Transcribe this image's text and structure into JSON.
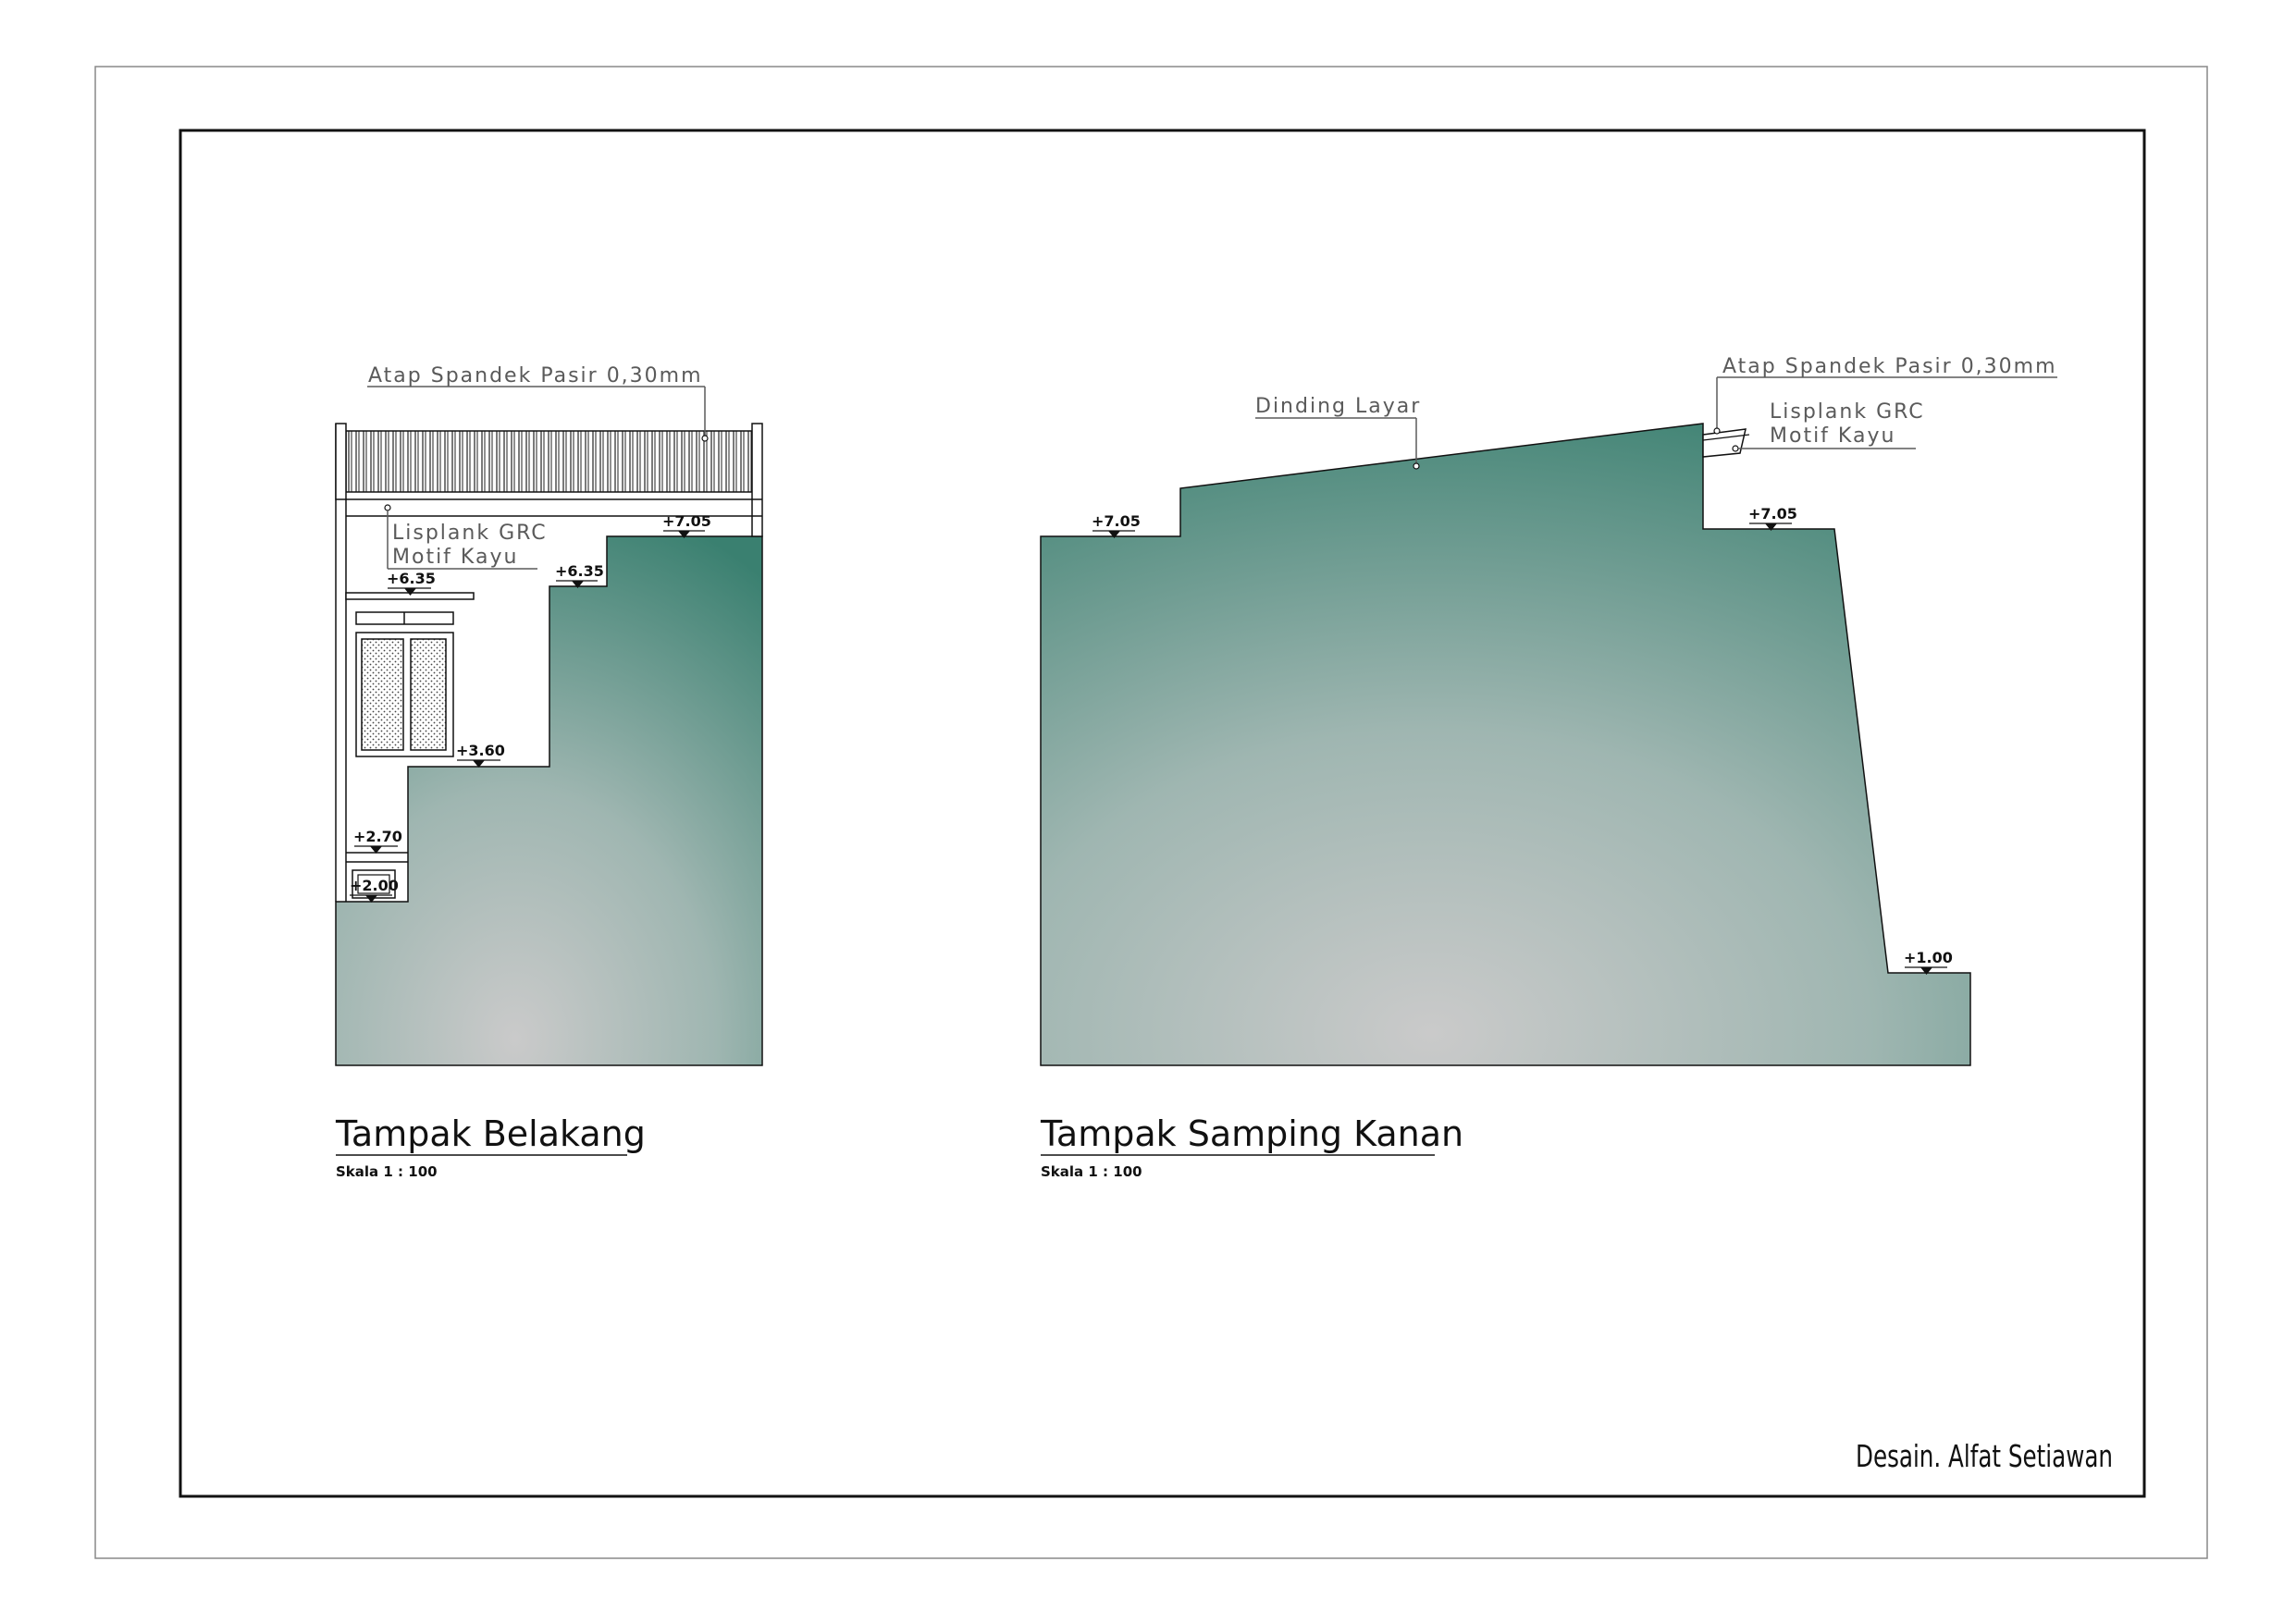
{
  "sheet": {
    "signature": "Desain. Alfat Setiawan",
    "colors": {
      "wall_top": "#3a8070",
      "wall_center": "#c9c9c9",
      "line": "#111111",
      "label": "#5a5a5a"
    }
  },
  "views": [
    {
      "title": "Tampak Belakang",
      "scale": "Skala 1 : 100",
      "labels": {
        "roof": "Atap  Spandek  Pasir  0,30mm",
        "fascia_1": "Lisplank  GRC",
        "fascia_2": "Motif  Kayu"
      },
      "levels": [
        "+7.05",
        "+6.35",
        "+6.35",
        "+3.60",
        "+2.70",
        "+2.00"
      ]
    },
    {
      "title": "Tampak Samping Kanan",
      "scale": "Skala 1 : 100",
      "labels": {
        "screen_wall": "Dinding  Layar",
        "roof": "Atap  Spandek  Pasir  0,30mm",
        "fascia_1": "Lisplank  GRC",
        "fascia_2": "Motif  Kayu"
      },
      "levels": [
        "+7.05",
        "+7.05",
        "+1.00"
      ]
    }
  ]
}
